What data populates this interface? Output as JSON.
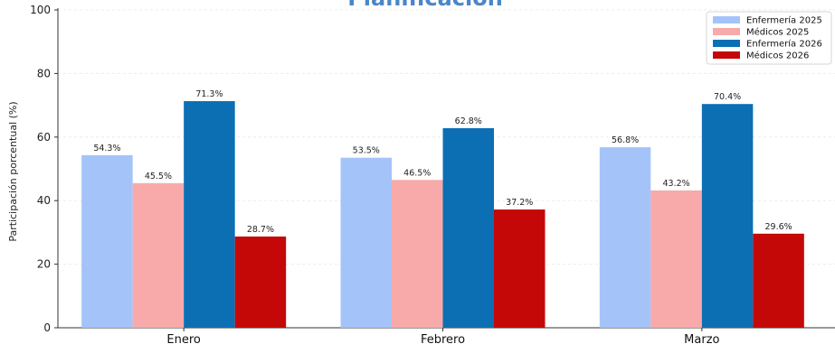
{
  "chart_data": {
    "type": "bar",
    "title": "Planificación",
    "xlabel": "",
    "ylabel": "Participación porcentual (%)",
    "categories": [
      "Enero",
      "Febrero",
      "Marzo"
    ],
    "ylim": [
      0,
      100
    ],
    "yticks": [
      0,
      20,
      40,
      60,
      80,
      100
    ],
    "grid": true,
    "legend_position": "top-right",
    "series": [
      {
        "name": "Enfermería 2025",
        "color": "#a4c4f9",
        "values": [
          54.3,
          53.5,
          56.8
        ],
        "labels": [
          "54.3%",
          "53.5%",
          "56.8%"
        ]
      },
      {
        "name": "Médicos 2025",
        "color": "#f8a9a9",
        "values": [
          45.5,
          46.5,
          43.2
        ],
        "labels": [
          "45.5%",
          "46.5%",
          "43.2%"
        ]
      },
      {
        "name": "Enfermería 2026",
        "color": "#0c6fb4",
        "values": [
          71.3,
          62.8,
          70.4
        ],
        "labels": [
          "71.3%",
          "62.8%",
          "70.4%"
        ]
      },
      {
        "name": "Médicos 2026",
        "color": "#c40808",
        "values": [
          28.7,
          37.2,
          29.6
        ],
        "labels": [
          "28.7%",
          "37.2%",
          "29.6%"
        ]
      }
    ],
    "title_color": "#4a86c8"
  }
}
